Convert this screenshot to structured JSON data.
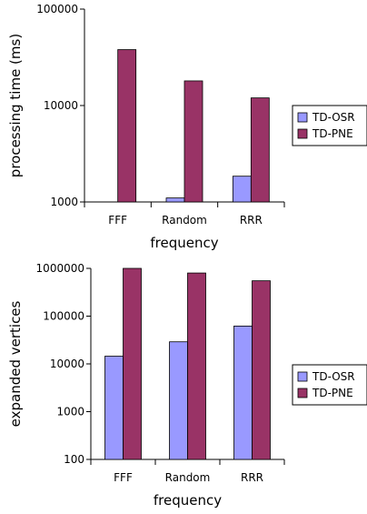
{
  "chart_data": [
    {
      "type": "bar",
      "categories": [
        "FFF",
        "Random",
        "RRR"
      ],
      "series": [
        {
          "name": "TD-OSR",
          "values": [
            1000,
            1100,
            1850
          ],
          "color": "#9999ff"
        },
        {
          "name": "TD-PNE",
          "values": [
            38000,
            18000,
            12000
          ],
          "color": "#993366"
        }
      ],
      "xlabel": "frequency",
      "ylabel": "processing time (ms)",
      "yscale": "log",
      "ylim": [
        1000,
        100000
      ],
      "yticks": [
        "1000",
        "10000",
        "100000"
      ],
      "legend": "right",
      "grid": false
    },
    {
      "type": "bar",
      "categories": [
        "FFF",
        "Random",
        "RRR"
      ],
      "series": [
        {
          "name": "TD-OSR",
          "values": [
            14500,
            29000,
            62000
          ],
          "color": "#9999ff"
        },
        {
          "name": "TD-PNE",
          "values": [
            1000000,
            800000,
            550000
          ],
          "color": "#993366"
        }
      ],
      "xlabel": "frequency",
      "ylabel": "expanded vertices",
      "yscale": "log",
      "ylim": [
        100,
        1000000
      ],
      "yticks": [
        "100",
        "1000",
        "10000",
        "100000",
        "1000000"
      ],
      "legend": "right",
      "grid": false
    }
  ]
}
